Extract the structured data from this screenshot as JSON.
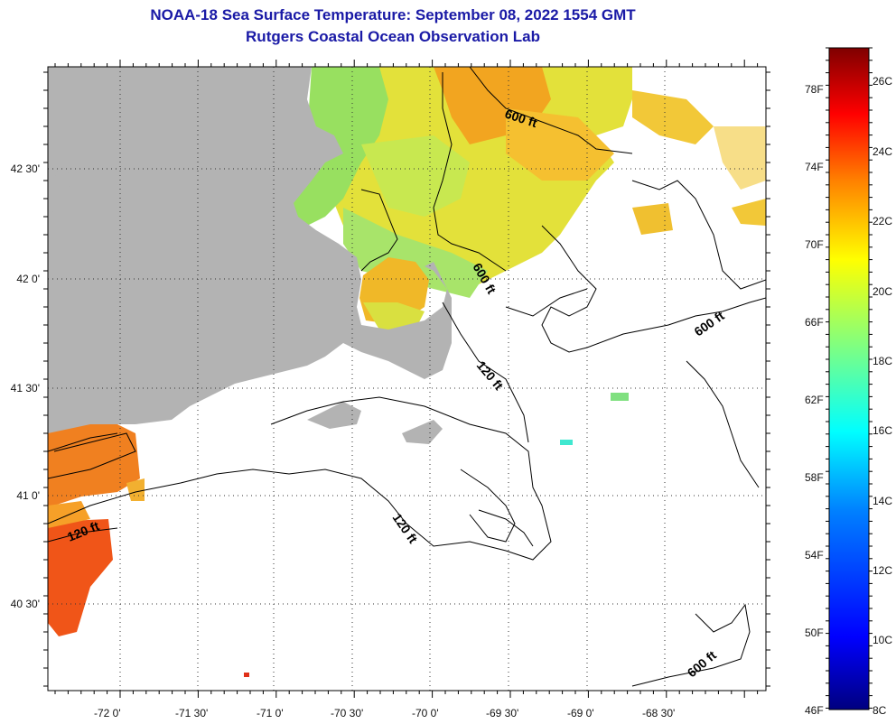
{
  "title": {
    "line1": "NOAA-18 Sea Surface Temperature:  September 08, 2022 1554 GMT",
    "line2": "Rutgers Coastal Ocean Observation Lab"
  },
  "axes": {
    "latitude_labels": [
      "42 30'",
      "42 0'",
      "41 30'",
      "41 0'",
      "40 30'"
    ],
    "longitude_labels": [
      "-72 0'",
      "-71 30'",
      "-71 0'",
      "-70 30'",
      "-70 0'",
      "-69 30'",
      "-69 0'",
      "-68 30'"
    ]
  },
  "colorbar": {
    "fahrenheit": [
      "78F",
      "74F",
      "70F",
      "66F",
      "62F",
      "58F",
      "54F",
      "50F",
      "46F"
    ],
    "celsius": [
      "26C",
      "24C",
      "22C",
      "20C",
      "18C",
      "16C",
      "14C",
      "12C",
      "10C",
      "8C"
    ],
    "range_celsius": [
      8,
      27
    ],
    "colors": [
      "#00007f",
      "#0000ff",
      "#0080ff",
      "#00ffff",
      "#80ff80",
      "#ffff00",
      "#ff8000",
      "#ff0000",
      "#7f0000"
    ]
  },
  "contours": {
    "labels": [
      "600 ft",
      "600 ft",
      "600 ft",
      "600 ft",
      "120 ft",
      "120 ft",
      "120 ft"
    ]
  },
  "colors": {
    "land": "#b3b3b3",
    "title": "#1a1aa6",
    "water_no_data": "#ffffff"
  }
}
